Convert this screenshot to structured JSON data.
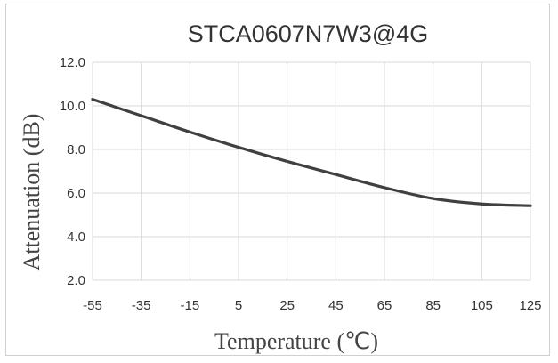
{
  "chart_data": {
    "type": "line",
    "title": "STCA0607N7W3@4G",
    "xlabel": "Temperature (℃)",
    "ylabel": "Attenuation (dB)",
    "x": [
      -55,
      -35,
      -15,
      5,
      25,
      45,
      65,
      85,
      105,
      125
    ],
    "x_tick_labels": [
      "-55",
      "-35",
      "-15",
      "5",
      "25",
      "45",
      "65",
      "85",
      "105",
      "125"
    ],
    "y_tick_labels": [
      "2.0",
      "4.0",
      "6.0",
      "8.0",
      "10.0",
      "12.0"
    ],
    "xlim": [
      -55,
      125
    ],
    "ylim": [
      2,
      12
    ],
    "y_ticks": [
      2,
      4,
      6,
      8,
      10,
      12
    ],
    "grid": true,
    "series": [
      {
        "values": [
          10.3,
          9.55,
          8.8,
          8.1,
          7.45,
          6.85,
          6.25,
          5.75,
          5.5,
          5.42
        ],
        "color": "#404040"
      }
    ]
  }
}
